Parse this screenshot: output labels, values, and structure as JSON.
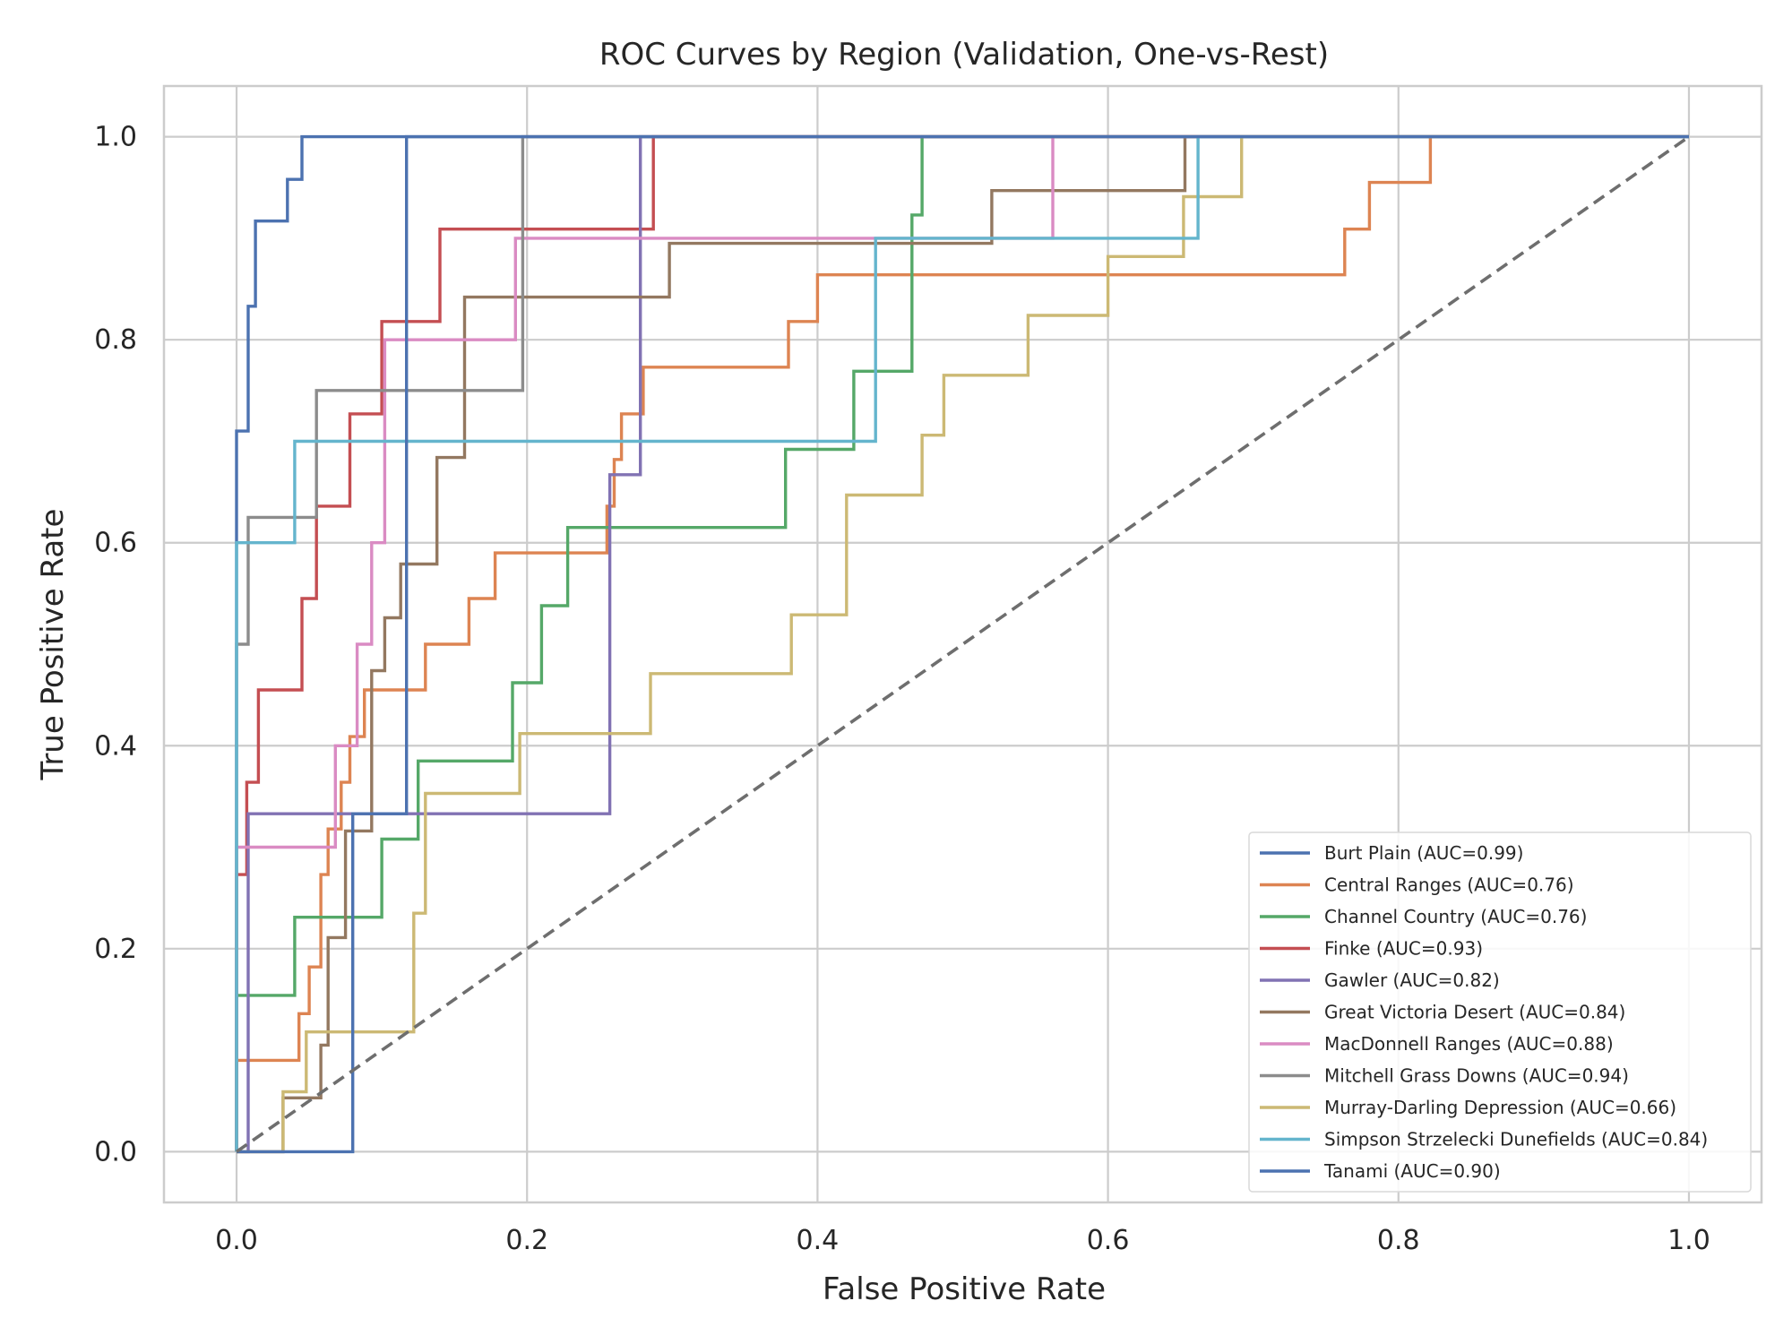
{
  "chart_data": {
    "type": "line",
    "title": "ROC Curves by Region (Validation, One-vs-Rest)",
    "xlabel": "False Positive Rate",
    "ylabel": "True Positive Rate",
    "xlim": [
      -0.05,
      1.05
    ],
    "ylim": [
      -0.05,
      1.05
    ],
    "xticks": [
      0.0,
      0.2,
      0.4,
      0.6,
      0.8,
      1.0
    ],
    "yticks": [
      0.0,
      0.2,
      0.4,
      0.6,
      0.8,
      1.0
    ],
    "xtick_labels": [
      "0.0",
      "0.2",
      "0.4",
      "0.6",
      "0.8",
      "1.0"
    ],
    "ytick_labels": [
      "0.0",
      "0.2",
      "0.4",
      "0.6",
      "0.8",
      "1.0"
    ],
    "grid": true,
    "legend_position": "lower-right",
    "diagonal": {
      "x": [
        0,
        1
      ],
      "y": [
        0,
        1
      ],
      "color": "#6e6e6e",
      "style": "dashed"
    },
    "series": [
      {
        "name": "Burt Plain (AUC=0.99)",
        "color": "#4c72b0",
        "x": [
          0,
          0,
          0.008,
          0.008,
          0.013,
          0.013,
          0.018,
          0.018,
          0.035,
          0.035,
          0.04,
          0.04,
          0.045,
          0.045,
          1
        ],
        "y": [
          0,
          0.71,
          0.71,
          0.833,
          0.833,
          0.917,
          0.917,
          0.917,
          0.917,
          0.958,
          0.958,
          0.958,
          0.958,
          1,
          1
        ]
      },
      {
        "name": "Central Ranges (AUC=0.76)",
        "color": "#dd8452",
        "x": [
          0,
          0,
          0.043,
          0.043,
          0.05,
          0.05,
          0.058,
          0.058,
          0.063,
          0.063,
          0.072,
          0.072,
          0.078,
          0.078,
          0.088,
          0.088,
          0.095,
          0.095,
          0.13,
          0.13,
          0.16,
          0.16,
          0.178,
          0.178,
          0.19,
          0.19,
          0.255,
          0.255,
          0.26,
          0.26,
          0.265,
          0.265,
          0.28,
          0.28,
          0.285,
          0.285,
          0.38,
          0.38,
          0.4,
          0.4,
          0.763,
          0.763,
          0.78,
          0.78,
          0.822,
          0.822,
          1
        ],
        "y": [
          0,
          0.09,
          0.09,
          0.136,
          0.136,
          0.182,
          0.182,
          0.273,
          0.273,
          0.318,
          0.318,
          0.364,
          0.364,
          0.409,
          0.409,
          0.455,
          0.455,
          0.455,
          0.455,
          0.5,
          0.5,
          0.545,
          0.545,
          0.59,
          0.59,
          0.59,
          0.59,
          0.636,
          0.636,
          0.682,
          0.682,
          0.727,
          0.727,
          0.773,
          0.773,
          0.773,
          0.773,
          0.818,
          0.818,
          0.864,
          0.864,
          0.909,
          0.909,
          0.955,
          0.955,
          1,
          1
        ]
      },
      {
        "name": "Channel Country (AUC=0.76)",
        "color": "#55a868",
        "x": [
          0,
          0,
          0.04,
          0.04,
          0.1,
          0.1,
          0.125,
          0.125,
          0.19,
          0.19,
          0.21,
          0.21,
          0.228,
          0.228,
          0.378,
          0.378,
          0.425,
          0.425,
          0.465,
          0.465,
          0.472,
          0.472,
          1
        ],
        "y": [
          0,
          0.154,
          0.154,
          0.231,
          0.231,
          0.308,
          0.308,
          0.385,
          0.385,
          0.462,
          0.462,
          0.538,
          0.538,
          0.615,
          0.615,
          0.692,
          0.692,
          0.769,
          0.769,
          0.923,
          0.923,
          1,
          1
        ]
      },
      {
        "name": "Finke (AUC=0.93)",
        "color": "#c44e52",
        "x": [
          0,
          0,
          0.007,
          0.007,
          0.015,
          0.015,
          0.045,
          0.045,
          0.055,
          0.055,
          0.078,
          0.078,
          0.1,
          0.1,
          0.14,
          0.14,
          0.287,
          0.287,
          1
        ],
        "y": [
          0,
          0.273,
          0.273,
          0.364,
          0.364,
          0.455,
          0.455,
          0.545,
          0.545,
          0.636,
          0.636,
          0.727,
          0.727,
          0.818,
          0.818,
          0.909,
          0.909,
          1,
          1
        ]
      },
      {
        "name": "Gawler (AUC=0.82)",
        "color": "#8172b3",
        "x": [
          0,
          0,
          0.008,
          0.008,
          0.257,
          0.257,
          0.278,
          0.278,
          1
        ],
        "y": [
          0,
          0,
          0,
          0.333,
          0.333,
          0.667,
          0.667,
          1,
          1
        ]
      },
      {
        "name": "Great Victoria Desert (AUC=0.84)",
        "color": "#937860",
        "x": [
          0,
          0,
          0.032,
          0.032,
          0.058,
          0.058,
          0.063,
          0.063,
          0.075,
          0.075,
          0.093,
          0.093,
          0.102,
          0.102,
          0.113,
          0.113,
          0.138,
          0.138,
          0.157,
          0.157,
          0.298,
          0.298,
          0.52,
          0.52,
          0.653,
          0.653,
          1
        ],
        "y": [
          0,
          0,
          0,
          0.053,
          0.053,
          0.105,
          0.105,
          0.211,
          0.211,
          0.316,
          0.316,
          0.474,
          0.474,
          0.526,
          0.526,
          0.579,
          0.579,
          0.684,
          0.684,
          0.842,
          0.842,
          0.895,
          0.895,
          0.947,
          0.947,
          1,
          1
        ]
      },
      {
        "name": "MacDonnell Ranges (AUC=0.88)",
        "color": "#da8bc3",
        "x": [
          0,
          0,
          0.068,
          0.068,
          0.083,
          0.083,
          0.093,
          0.093,
          0.102,
          0.102,
          0.192,
          0.192,
          0.562,
          0.562,
          1
        ],
        "y": [
          0,
          0.3,
          0.3,
          0.4,
          0.4,
          0.5,
          0.5,
          0.6,
          0.6,
          0.8,
          0.8,
          0.9,
          0.9,
          1,
          1
        ]
      },
      {
        "name": "Mitchell Grass Downs (AUC=0.94)",
        "color": "#8c8c8c",
        "x": [
          0,
          0,
          0.008,
          0.008,
          0.055,
          0.055,
          0.197,
          0.197,
          1
        ],
        "y": [
          0,
          0.5,
          0.5,
          0.625,
          0.625,
          0.75,
          0.75,
          1,
          1
        ]
      },
      {
        "name": "Murray-Darling Depression (AUC=0.66)",
        "color": "#ccb974",
        "x": [
          0,
          0.032,
          0.032,
          0.048,
          0.048,
          0.122,
          0.122,
          0.13,
          0.13,
          0.195,
          0.195,
          0.285,
          0.285,
          0.382,
          0.382,
          0.42,
          0.42,
          0.472,
          0.472,
          0.487,
          0.487,
          0.545,
          0.545,
          0.6,
          0.6,
          0.652,
          0.652,
          0.692,
          0.692,
          1
        ],
        "y": [
          0,
          0,
          0.059,
          0.059,
          0.118,
          0.118,
          0.235,
          0.235,
          0.353,
          0.353,
          0.412,
          0.412,
          0.471,
          0.471,
          0.529,
          0.529,
          0.647,
          0.647,
          0.706,
          0.706,
          0.765,
          0.765,
          0.824,
          0.824,
          0.882,
          0.882,
          0.941,
          0.941,
          1,
          1
        ]
      },
      {
        "name": "Simpson Strzelecki Dunefields (AUC=0.84)",
        "color": "#64b5cd",
        "x": [
          0,
          0,
          0.04,
          0.04,
          0.44,
          0.44,
          0.662,
          0.662,
          1
        ],
        "y": [
          0,
          0.6,
          0.6,
          0.7,
          0.7,
          0.9,
          0.9,
          1,
          1
        ]
      },
      {
        "name": "Tanami (AUC=0.90)",
        "color": "#4c72b0",
        "x": [
          0,
          0.08,
          0.08,
          0.117,
          0.117,
          1
        ],
        "y": [
          0,
          0,
          0.333,
          0.333,
          1,
          1
        ]
      }
    ]
  }
}
